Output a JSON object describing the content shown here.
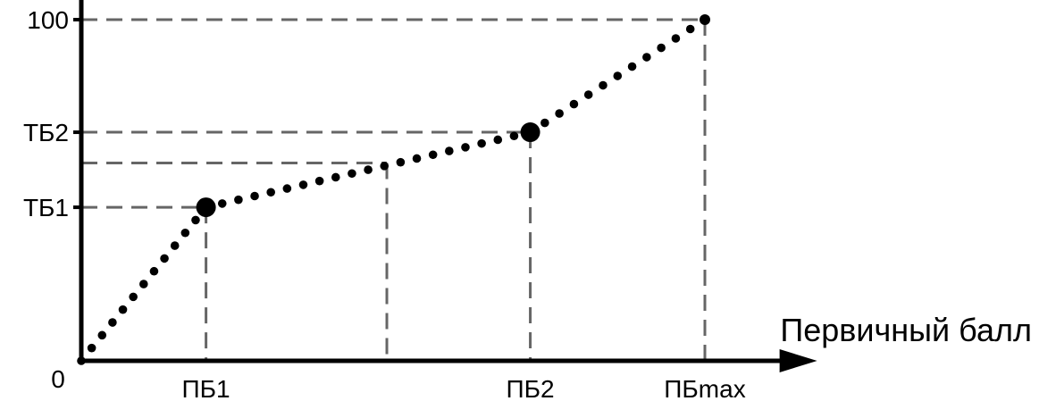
{
  "chart_data": {
    "type": "line",
    "xlabel": "Первичный балл",
    "ylabel": "",
    "origin_label": "0",
    "x_ticks": [
      "ПБ1",
      "ПБ2",
      "ПБmax"
    ],
    "y_ticks": [
      "ТБ1",
      "ТБ2",
      "100"
    ],
    "points": [
      {
        "x": 0,
        "y": 0
      },
      {
        "x": 20,
        "y": 45
      },
      {
        "x": 72,
        "y": 67
      },
      {
        "x": 100,
        "y": 100
      }
    ],
    "key_points": [
      {
        "x": 20,
        "y": 45
      },
      {
        "x": 72,
        "y": 67
      }
    ],
    "guide_x": [
      20,
      49,
      72,
      100
    ],
    "guide_y": [
      45,
      58,
      67,
      100
    ],
    "xlim": [
      0,
      118
    ],
    "ylim": [
      0,
      100
    ],
    "line_style": "dotted",
    "grid": false
  },
  "colors": {
    "line": "#000000",
    "guides": "#666666",
    "axis": "#000000"
  }
}
